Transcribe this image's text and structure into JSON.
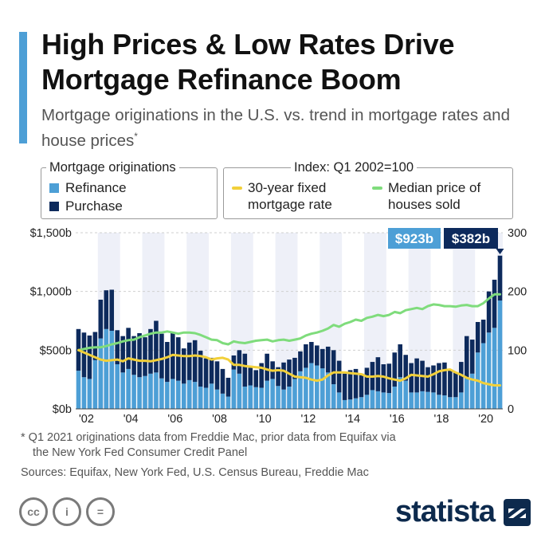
{
  "header": {
    "title": "High Prices & Low Rates Drive Mortgage Refinance Boom",
    "subtitle": "Mortgage originations in the U.S. vs. trend in mortgage rates and house prices",
    "subtitle_marker": "*"
  },
  "legend": {
    "originations_title": "Mortgage originations",
    "refinance_label": "Refinance",
    "purchase_label": "Purchase",
    "index_title": "Index: Q1 2002=100",
    "rate_label_line1": "30-year fixed",
    "rate_label_line2": "mortgage rate",
    "price_label_line1": "Median price of",
    "price_label_line2": "houses sold"
  },
  "colors": {
    "accent": "#4d9fd6",
    "refinance": "#4d9fd6",
    "purchase": "#0d2a5c",
    "rate_line": "#f2d03a",
    "price_line": "#7fdc7c",
    "shade": "#eef0f8",
    "brand": "#0d2a4d"
  },
  "chart_data": {
    "type": "bar",
    "title": "Mortgage originations in the U.S. vs. trend in mortgage rates and house prices",
    "x_axis": {
      "tick_labels": [
        "'02",
        "'04",
        "'06",
        "'08",
        "'10",
        "'12",
        "'14",
        "'16",
        "'18",
        "'20"
      ],
      "start": "Q1 2002",
      "end": "Q1 2021",
      "shading": "alternating years"
    },
    "y_left": {
      "label": "Mortgage originations (USD)",
      "ticks": [
        "$0b",
        "$500b",
        "$1,000b",
        "$1,500b"
      ],
      "range": [
        0,
        1500
      ]
    },
    "y_right": {
      "label": "Index: Q1 2002=100",
      "ticks": [
        "0",
        "100",
        "200",
        "300"
      ],
      "range": [
        0,
        300
      ]
    },
    "quarters": [
      "2002Q1",
      "2002Q2",
      "2002Q3",
      "2002Q4",
      "2003Q1",
      "2003Q2",
      "2003Q3",
      "2003Q4",
      "2004Q1",
      "2004Q2",
      "2004Q3",
      "2004Q4",
      "2005Q1",
      "2005Q2",
      "2005Q3",
      "2005Q4",
      "2006Q1",
      "2006Q2",
      "2006Q3",
      "2006Q4",
      "2007Q1",
      "2007Q2",
      "2007Q3",
      "2007Q4",
      "2008Q1",
      "2008Q2",
      "2008Q3",
      "2008Q4",
      "2009Q1",
      "2009Q2",
      "2009Q3",
      "2009Q4",
      "2010Q1",
      "2010Q2",
      "2010Q3",
      "2010Q4",
      "2011Q1",
      "2011Q2",
      "2011Q3",
      "2011Q4",
      "2012Q1",
      "2012Q2",
      "2012Q3",
      "2012Q4",
      "2013Q1",
      "2013Q2",
      "2013Q3",
      "2013Q4",
      "2014Q1",
      "2014Q2",
      "2014Q3",
      "2014Q4",
      "2015Q1",
      "2015Q2",
      "2015Q3",
      "2015Q4",
      "2016Q1",
      "2016Q2",
      "2016Q3",
      "2016Q4",
      "2017Q1",
      "2017Q2",
      "2017Q3",
      "2017Q4",
      "2018Q1",
      "2018Q2",
      "2018Q3",
      "2018Q4",
      "2019Q1",
      "2019Q2",
      "2019Q3",
      "2019Q4",
      "2020Q1",
      "2020Q2",
      "2020Q3",
      "2020Q4",
      "2021Q1"
    ],
    "series": [
      {
        "name": "Refinance",
        "unit": "USD billion",
        "values": [
          325,
          270,
          255,
          415,
          600,
          680,
          665,
          380,
          310,
          340,
          290,
          270,
          280,
          300,
          310,
          260,
          230,
          255,
          240,
          215,
          245,
          230,
          190,
          180,
          215,
          165,
          130,
          105,
          335,
          300,
          190,
          200,
          185,
          180,
          240,
          255,
          195,
          165,
          190,
          255,
          320,
          350,
          390,
          370,
          345,
          310,
          210,
          140,
          75,
          80,
          90,
          100,
          120,
          160,
          150,
          140,
          135,
          190,
          270,
          240,
          140,
          140,
          150,
          145,
          140,
          120,
          115,
          100,
          100,
          140,
          260,
          300,
          480,
          560,
          650,
          690,
          923
        ]
      },
      {
        "name": "Purchase",
        "unit": "USD billion",
        "values": [
          355,
          380,
          370,
          240,
          330,
          330,
          350,
          290,
          310,
          350,
          330,
          375,
          330,
          380,
          440,
          380,
          340,
          390,
          370,
          300,
          320,
          355,
          305,
          250,
          220,
          240,
          210,
          160,
          120,
          200,
          280,
          150,
          145,
          210,
          230,
          150,
          160,
          230,
          230,
          180,
          170,
          200,
          180,
          170,
          165,
          220,
          290,
          270,
          225,
          250,
          250,
          200,
          230,
          240,
          290,
          240,
          250,
          290,
          280,
          220,
          250,
          290,
          260,
          210,
          230,
          270,
          280,
          230,
          210,
          260,
          360,
          290,
          260,
          200,
          350,
          410,
          382
        ]
      },
      {
        "name": "30-year fixed mortgage rate",
        "unit": "index (Q1 2002=100)",
        "values": [
          100,
          96,
          92,
          88,
          84,
          82,
          83,
          84,
          81,
          86,
          84,
          82,
          82,
          81,
          83,
          85,
          88,
          92,
          91,
          90,
          90,
          91,
          90,
          88,
          84,
          86,
          87,
          84,
          75,
          75,
          73,
          72,
          71,
          70,
          67,
          65,
          66,
          65,
          60,
          55,
          54,
          53,
          50,
          48,
          50,
          57,
          62,
          62,
          62,
          61,
          60,
          59,
          55,
          55,
          56,
          55,
          52,
          50,
          48,
          52,
          58,
          57,
          56,
          55,
          59,
          64,
          66,
          67,
          62,
          58,
          53,
          50,
          48,
          44,
          42,
          40,
          40
        ]
      },
      {
        "name": "Median price of houses sold",
        "unit": "index (Q1 2002=100)",
        "values": [
          100,
          102,
          104,
          105,
          105,
          107,
          110,
          112,
          115,
          117,
          118,
          122,
          125,
          128,
          130,
          130,
          132,
          130,
          128,
          130,
          130,
          129,
          126,
          122,
          118,
          117,
          112,
          110,
          115,
          113,
          112,
          114,
          116,
          117,
          118,
          115,
          117,
          118,
          116,
          118,
          120,
          125,
          128,
          130,
          133,
          137,
          143,
          140,
          145,
          148,
          152,
          150,
          155,
          157,
          160,
          158,
          160,
          165,
          163,
          168,
          170,
          172,
          170,
          175,
          178,
          177,
          175,
          175,
          174,
          176,
          177,
          175,
          175,
          180,
          188,
          195,
          195
        ]
      }
    ],
    "annotations": [
      {
        "series": "Refinance",
        "quarter": "2021Q1",
        "label": "$923b"
      },
      {
        "series": "Purchase",
        "quarter": "2021Q1",
        "label": "$382b"
      }
    ]
  },
  "footnote": {
    "line1": "* Q1 2021 originations data from Freddie Mac, prior data from Equifax via",
    "line2": "the New York Fed Consumer Credit Panel"
  },
  "sources": "Sources: Equifax, New York Fed, U.S. Census Bureau, Freddie Mac",
  "branding": {
    "logo_text": "statista",
    "license_icons": [
      "cc-icon",
      "attribution-icon",
      "no-derivatives-icon"
    ],
    "license_glyphs": [
      "cc",
      "i",
      "="
    ]
  }
}
